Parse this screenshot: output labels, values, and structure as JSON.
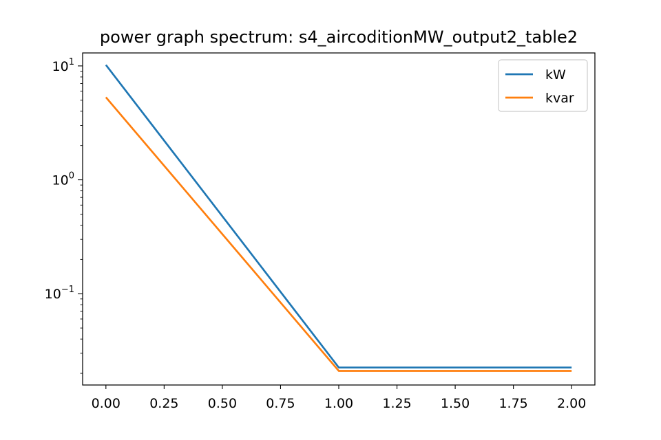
{
  "chart_data": {
    "type": "line",
    "title": "power graph spectrum: s4_aircoditionMW_output2_table2",
    "xlabel": "",
    "ylabel": "",
    "x": [
      0,
      1,
      2
    ],
    "series": [
      {
        "name": "kW",
        "values": [
          10.2,
          0.0225,
          0.0225
        ],
        "color": "#1f77b4"
      },
      {
        "name": "kvar",
        "values": [
          5.3,
          0.021,
          0.021
        ],
        "color": "#ff7f0e"
      }
    ],
    "xlim": [
      -0.1,
      2.1
    ],
    "ylim": [
      0.0158,
      13.0
    ],
    "yscale": "log",
    "x_ticks": [
      {
        "value": 0.0,
        "label": "0.00"
      },
      {
        "value": 0.25,
        "label": "0.25"
      },
      {
        "value": 0.5,
        "label": "0.50"
      },
      {
        "value": 0.75,
        "label": "0.75"
      },
      {
        "value": 1.0,
        "label": "1.00"
      },
      {
        "value": 1.25,
        "label": "1.25"
      },
      {
        "value": 1.5,
        "label": "1.50"
      },
      {
        "value": 1.75,
        "label": "1.75"
      },
      {
        "value": 2.0,
        "label": "2.00"
      }
    ],
    "y_ticks": [
      {
        "value": 10,
        "base": "10",
        "exp": "1"
      },
      {
        "value": 1,
        "base": "10",
        "exp": "0"
      },
      {
        "value": 0.1,
        "base": "10",
        "exp": "−1"
      }
    ],
    "grid": false,
    "legend_position": "top-right"
  }
}
